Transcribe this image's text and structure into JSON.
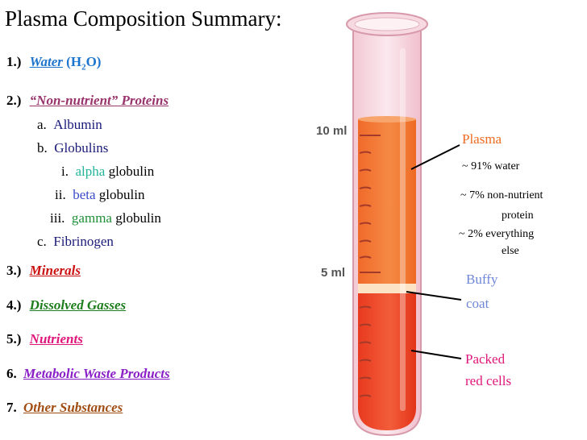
{
  "title": "Plasma Composition Summary:",
  "list": {
    "n1": "1.)",
    "water": "Water",
    "h2o_open": "(H",
    "h2o_sub": "2",
    "h2o_close": "O)",
    "n2": "2.)",
    "proteins": "“Non-nutrient” Proteins",
    "a": "a.",
    "albumin": "Albumin",
    "b": "b.",
    "globulins": "Globulins",
    "i": "i.",
    "alpha": "alpha",
    "ii": "ii.",
    "beta": "beta",
    "iii": "iii.",
    "gamma": "gamma",
    "globulin": "globulin",
    "c": "c.",
    "fibrinogen": "Fibrinogen",
    "n3": "3.)",
    "minerals": "Minerals",
    "n4": "4.)",
    "gasses": "Dissolved Gasses",
    "n5": "5.)",
    "nutrients": "Nutrients",
    "n6": "6.",
    "waste": "Metabolic Waste Products",
    "n7": "7.",
    "other": "Other Substances"
  },
  "tube": {
    "mark_10": "10 ml",
    "mark_5": "5 ml"
  },
  "labels": {
    "plasma": "Plasma",
    "water_pct": "~ 91% water",
    "protein_pct_1": "~ 7% non-nutrient",
    "protein_pct_2": "protein",
    "else_pct_1": "~ 2% everything",
    "else_pct_2": "else",
    "buffy_1": "Buffy",
    "buffy_2": "coat",
    "packed_1": "Packed",
    "packed_2": "red cells"
  },
  "colors": {
    "water": "#1d74cc",
    "proteins": "#99336b",
    "minerals": "#cc1010",
    "gasses": "#1d7d1d",
    "nutrients": "#e0157a",
    "waste": "#8a1fc7",
    "other": "#a04c12",
    "alpha": "#22b59a",
    "beta": "#3a4bc8",
    "gamma": "#1e8f36",
    "plasma_label": "#ef6a1f",
    "buffy_label": "#6e86d8",
    "packed_label": "#e0157a"
  }
}
